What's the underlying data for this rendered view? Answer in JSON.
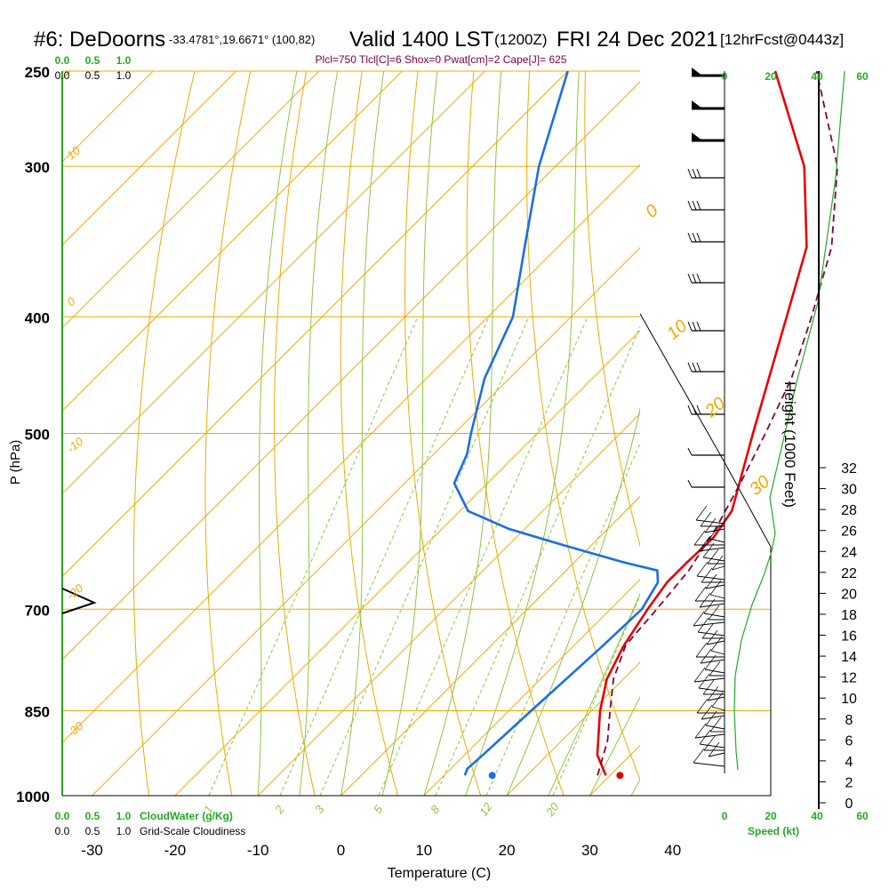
{
  "title": {
    "station": "#6: DeDoorns",
    "coords": "-33.4781°,19.6671° (100,82)",
    "valid": "Valid 1400 LST",
    "zulu": "(1200Z)",
    "date": "FRI 24 Dec 2021",
    "forecast": "[12hrFcst@0443z]"
  },
  "subtitle": "Plcl=750 Tlcl[C]=6 Shox=0 Pwat[cm]=2 Cape[J]= 625",
  "colors": {
    "isotherm": "#f2a900",
    "dry_adiabat": "#8ec63f",
    "moist_adiabat": "#8ec63f",
    "mixing_ratio": "#8ec63f",
    "temperature": "#e80000",
    "dewpoint": "#1a6ee8",
    "parcel": "#800040",
    "cloud": "#22aa22",
    "axes": "#000000"
  },
  "labels": {
    "x_axis": "Temperature (C)",
    "y_axis": "P (hPa)",
    "height_axis": "Height (1000 Feet)",
    "cloudwater": "CloudWater (g/Kg)",
    "cloudiness": "Grid-Scale Cloudiness",
    "speed": "Speed (kt)"
  },
  "chart_data": {
    "type": "line",
    "x_axis": {
      "label": "Temperature (C)",
      "range": [
        -34,
        45
      ],
      "ticks": [
        -30,
        -20,
        -10,
        0,
        10,
        20,
        30,
        40
      ]
    },
    "y_axis": {
      "label": "P (hPa)",
      "range": [
        1000,
        250
      ],
      "scale": "log",
      "ticks": [
        250,
        300,
        400,
        500,
        700,
        850,
        1000
      ]
    },
    "height_axis": {
      "label": "Height (1000 Feet)",
      "ticks": [
        0,
        2,
        4,
        6,
        8,
        10,
        12,
        14,
        16,
        18,
        20,
        22,
        24,
        26,
        28,
        30,
        32
      ]
    },
    "cloud_scale_ticks": [
      "0.0",
      "0.5",
      "1.0"
    ],
    "speed_scale_ticks": [
      "0",
      "20",
      "40",
      "60"
    ],
    "isotherm_labels": [
      "10",
      "0",
      "-10",
      "-20",
      "-30",
      "0",
      "10",
      "20",
      "30"
    ],
    "mixing_ratio_labels": [
      "1",
      "2",
      "3",
      "5",
      "8",
      "12",
      "20"
    ],
    "series": [
      {
        "name": "Temperature",
        "p": [
          962,
          925,
          850,
          800,
          750,
          700,
          665,
          640,
          610,
          580,
          500,
          400,
          350,
          300,
          250
        ],
        "t": [
          29.5,
          26.0,
          21.0,
          18.0,
          16.0,
          14.5,
          13.6,
          13.6,
          13.8,
          12.8,
          6.0,
          -4.0,
          -10.0,
          -20.0,
          -35.0
        ]
      },
      {
        "name": "Dewpoint",
        "p": [
          962,
          950,
          925,
          850,
          800,
          750,
          700,
          665,
          650,
          640,
          620,
          600,
          580,
          550,
          520,
          500,
          450,
          400,
          350,
          300,
          250
        ],
        "t": [
          12.5,
          12.0,
          12.2,
          12.7,
          13.1,
          13.5,
          13.8,
          12.5,
          11.0,
          6.0,
          -3.0,
          -12.0,
          -19.0,
          -24.0,
          -26.0,
          -28.0,
          -33.0,
          -37.0,
          -44.0,
          -52.0,
          -60.0
        ]
      },
      {
        "name": "Parcel",
        "p": [
          962,
          900,
          850,
          800,
          750,
          700,
          650,
          600,
          550,
          500,
          450,
          400,
          350,
          300,
          250
        ],
        "t": [
          28.5,
          25.5,
          22.2,
          18.8,
          16.2,
          15.6,
          14.8,
          13.0,
          10.5,
          7.5,
          4.0,
          -1.0,
          -7.0,
          -16.0,
          -30.0
        ]
      }
    ],
    "surface_points": [
      {
        "name": "Temperature",
        "p": 962,
        "t": 31.2
      },
      {
        "name": "Dewpoint",
        "p": 962,
        "t": 15.8
      }
    ],
    "wind_profile_kt": [
      {
        "p": 962,
        "speed": 8
      },
      {
        "p": 925,
        "speed": 8
      },
      {
        "p": 850,
        "speed": 9
      },
      {
        "p": 800,
        "speed": 9
      },
      {
        "p": 750,
        "speed": 10
      },
      {
        "p": 700,
        "speed": 12
      },
      {
        "p": 650,
        "speed": 15
      },
      {
        "p": 620,
        "speed": 18
      },
      {
        "p": 600,
        "speed": 18
      },
      {
        "p": 500,
        "speed": 22
      },
      {
        "p": 400,
        "speed": 28
      },
      {
        "p": 300,
        "speed": 35
      },
      {
        "p": 250,
        "speed": 38
      }
    ],
    "grid": true
  }
}
